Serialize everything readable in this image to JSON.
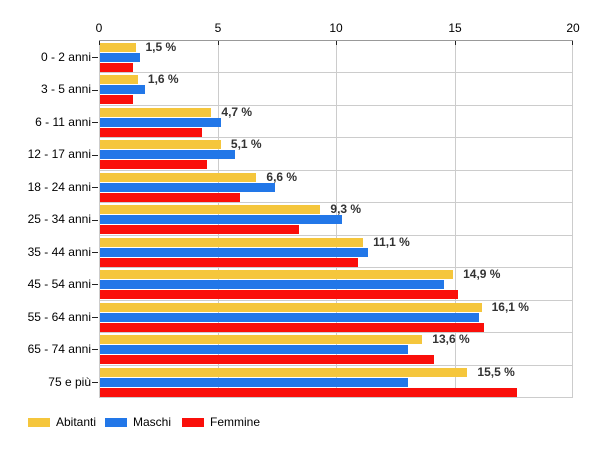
{
  "chart_data": {
    "type": "bar",
    "orientation": "horizontal",
    "title": "",
    "xlabel": "",
    "ylabel": "",
    "xlim": [
      0,
      20
    ],
    "x_ticks": [
      0,
      5,
      10,
      15,
      20
    ],
    "grid": true,
    "legend_position": "bottom",
    "categories": [
      "0 - 2 anni",
      "3 - 5 anni",
      "6 - 11 anni",
      "12 - 17 anni",
      "18 - 24 anni",
      "25 - 34 anni",
      "35 - 44 anni",
      "45 - 54 anni",
      "55 - 64 anni",
      "65 - 74 anni",
      "75 e più"
    ],
    "series": [
      {
        "name": "Abitanti",
        "color": "#F5C63C",
        "values": [
          1.5,
          1.6,
          4.7,
          5.1,
          6.6,
          9.3,
          11.1,
          14.9,
          16.1,
          13.6,
          15.5
        ]
      },
      {
        "name": "Maschi",
        "color": "#2277E8",
        "values": [
          1.7,
          1.9,
          5.1,
          5.7,
          7.4,
          10.2,
          11.3,
          14.5,
          16.0,
          13.0,
          13.0
        ]
      },
      {
        "name": "Femmine",
        "color": "#FA0F0A",
        "values": [
          1.4,
          1.4,
          4.3,
          4.5,
          5.9,
          8.4,
          10.9,
          15.1,
          16.2,
          14.1,
          17.6
        ]
      }
    ],
    "value_labels": [
      "1,5 %",
      "1,6 %",
      "4,7 %",
      "5,1 %",
      "6,6 %",
      "9,3 %",
      "11,1 %",
      "14,9 %",
      "16,1 %",
      "13,6 %",
      "15,5 %"
    ]
  },
  "colors": {
    "background": "#FFFFFF",
    "gridline": "#CCCCCC",
    "axis_line": "#999999",
    "tick_mark": "#222222",
    "text": "#000000",
    "value_label_text": "#333333",
    "series_yellow": "#F5C63C",
    "series_blue": "#2277E8",
    "series_red": "#FA0F0A"
  }
}
